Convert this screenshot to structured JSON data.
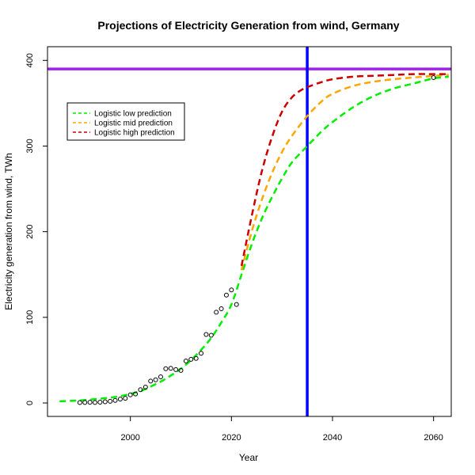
{
  "chart_data": {
    "type": "line",
    "title": "Projections of Electricity Generation from wind, Germany",
    "xlabel": "Year",
    "ylabel": "Electricity generation from wind, TWh",
    "xlim": [
      1983.6,
      2063.5
    ],
    "ylim": [
      -15.7,
      416
    ],
    "x_ticks": [
      2000,
      2020,
      2040,
      2060
    ],
    "y_ticks": [
      0,
      100,
      200,
      300,
      400
    ],
    "grid": false,
    "legend_position": "top-left",
    "hline": {
      "y": 390,
      "color": "#a020f0"
    },
    "vline": {
      "x": 2035,
      "color": "#0000ff"
    },
    "observed": {
      "x": [
        1990,
        1991,
        1992,
        1993,
        1994,
        1995,
        1996,
        1997,
        1998,
        1999,
        2000,
        2001,
        2002,
        2003,
        2004,
        2005,
        2006,
        2007,
        2008,
        2009,
        2010,
        2011,
        2012,
        2013,
        2014,
        2015,
        2016,
        2017,
        2018,
        2019,
        2020,
        2021,
        2060
      ],
      "y": [
        0.5,
        0.6,
        0.8,
        0.6,
        0.9,
        1.4,
        2,
        3,
        4.5,
        5.5,
        9.5,
        10.5,
        15.5,
        18.5,
        25.5,
        27,
        30.5,
        40,
        40.5,
        39,
        38,
        49,
        51,
        52,
        58,
        80,
        79,
        106,
        110,
        126,
        132,
        115,
        380
      ]
    },
    "series": [
      {
        "name": "Logistic low prediction",
        "color": "#00ee00",
        "x": [
          1986,
          1990,
          1994,
          1998,
          2002,
          2006,
          2008,
          2010,
          2012,
          2014,
          2016,
          2018,
          2020,
          2022,
          2024,
          2026,
          2028,
          2030,
          2032,
          2035,
          2038,
          2040,
          2044,
          2048,
          2052,
          2056,
          2060,
          2063
        ],
        "y": [
          2,
          3,
          5,
          8,
          14,
          25,
          32,
          40,
          50,
          62,
          76,
          94,
          115,
          150,
          185,
          215,
          240,
          262,
          281,
          300,
          318,
          328,
          345,
          358,
          367,
          373,
          379,
          381
        ]
      },
      {
        "name": "Logistic mid prediction",
        "color": "#ffa500",
        "x": [
          2022,
          2024,
          2026,
          2028,
          2030,
          2032,
          2035,
          2038,
          2040,
          2044,
          2048,
          2052,
          2056,
          2060,
          2063
        ],
        "y": [
          155,
          200,
          237,
          268,
          293,
          312,
          335,
          353,
          361,
          370,
          375,
          378,
          380,
          382,
          383
        ]
      },
      {
        "name": "Logistic high prediction",
        "color": "#cc0000",
        "x": [
          2022,
          2024,
          2026,
          2028,
          2030,
          2032,
          2034,
          2036,
          2038,
          2040,
          2044,
          2048,
          2052,
          2056,
          2060,
          2063
        ],
        "y": [
          160,
          218,
          270,
          310,
          340,
          357,
          366,
          371,
          375,
          378,
          381,
          382,
          383,
          384,
          384,
          384
        ]
      }
    ]
  }
}
